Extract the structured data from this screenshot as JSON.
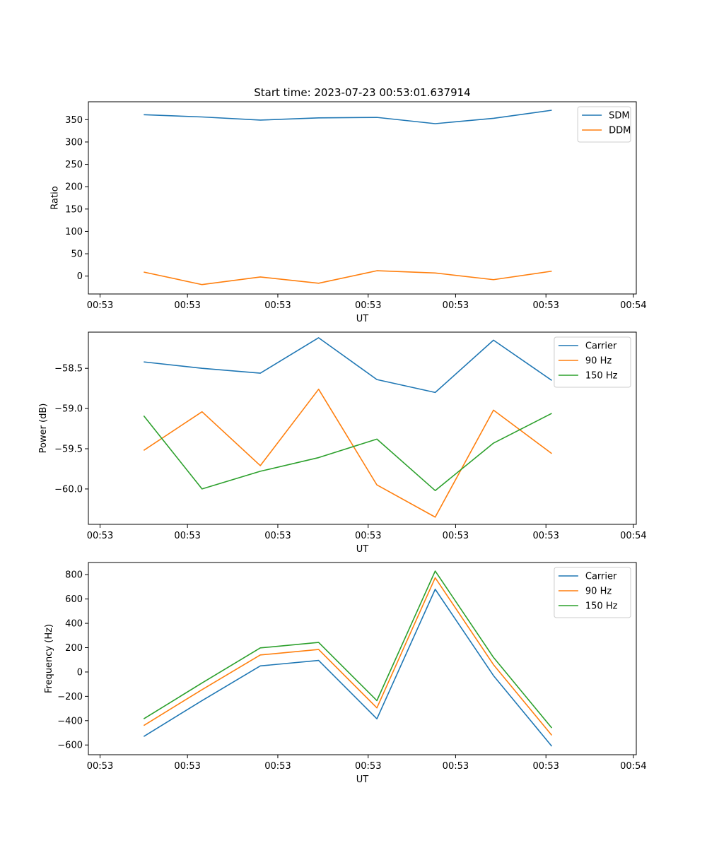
{
  "chart_data": [
    {
      "type": "line",
      "title": "Start time: 2023-07-23 00:53:01.637914",
      "xlabel": "UT",
      "ylabel": "Ratio",
      "xlim": [
        -0.2,
        9.2
      ],
      "ylim": [
        -40,
        390
      ],
      "x_ticks": [
        0,
        1.5,
        3.05,
        4.6,
        6.1,
        7.65,
        9.15
      ],
      "x_tick_labels": [
        "00:53",
        "00:53",
        "00:53",
        "00:53",
        "00:53",
        "00:53",
        "00:54"
      ],
      "y_ticks": [
        0,
        50,
        100,
        150,
        200,
        250,
        300,
        350
      ],
      "y_tick_labels": [
        "0",
        "50",
        "100",
        "150",
        "200",
        "250",
        "300",
        "350"
      ],
      "x": [
        0.75,
        1.75,
        2.75,
        3.75,
        4.75,
        5.75,
        6.75,
        7.75
      ],
      "series": [
        {
          "name": "SDM",
          "color": "#1f77b4",
          "values": [
            361,
            356,
            349,
            354,
            355,
            341,
            353,
            371
          ]
        },
        {
          "name": "DDM",
          "color": "#ff7f0e",
          "values": [
            9,
            -19,
            -2,
            -16,
            12,
            7,
            -8,
            11
          ]
        }
      ],
      "legend": "top-right"
    },
    {
      "type": "line",
      "title": "",
      "xlabel": "UT",
      "ylabel": "Power (dB)",
      "xlim": [
        -0.2,
        9.2
      ],
      "ylim": [
        -60.44,
        -58.05
      ],
      "x_ticks": [
        0,
        1.5,
        3.05,
        4.6,
        6.1,
        7.65,
        9.15
      ],
      "x_tick_labels": [
        "00:53",
        "00:53",
        "00:53",
        "00:53",
        "00:53",
        "00:53",
        "00:54"
      ],
      "y_ticks": [
        -60.0,
        -59.5,
        -59.0,
        -58.5
      ],
      "y_tick_labels": [
        "−60.0",
        "−59.5",
        "−59.0",
        "−58.5"
      ],
      "x": [
        0.75,
        1.75,
        2.75,
        3.75,
        4.75,
        5.75,
        6.75,
        7.75
      ],
      "series": [
        {
          "name": "Carrier",
          "color": "#1f77b4",
          "values": [
            -58.42,
            -58.5,
            -58.56,
            -58.12,
            -58.64,
            -58.8,
            -58.15,
            -58.65
          ]
        },
        {
          "name": "90 Hz",
          "color": "#ff7f0e",
          "values": [
            -59.52,
            -59.04,
            -59.71,
            -58.76,
            -59.95,
            -60.35,
            -59.02,
            -59.56
          ]
        },
        {
          "name": "150 Hz",
          "color": "#2ca02c",
          "values": [
            -59.09,
            -60.0,
            -59.78,
            -59.61,
            -59.38,
            -60.02,
            -59.43,
            -59.06
          ]
        }
      ],
      "legend": "top-right"
    },
    {
      "type": "line",
      "title": "",
      "xlabel": "UT",
      "ylabel": "Frequency (Hz)",
      "xlim": [
        -0.2,
        9.2
      ],
      "ylim": [
        -680,
        900
      ],
      "x_ticks": [
        0,
        1.5,
        3.05,
        4.6,
        6.1,
        7.65,
        9.15
      ],
      "x_tick_labels": [
        "00:53",
        "00:53",
        "00:53",
        "00:53",
        "00:53",
        "00:53",
        "00:54"
      ],
      "y_ticks": [
        -600,
        -400,
        -200,
        0,
        200,
        400,
        600,
        800
      ],
      "y_tick_labels": [
        "−600",
        "−400",
        "−200",
        "0",
        "200",
        "400",
        "600",
        "800"
      ],
      "x": [
        0.75,
        1.75,
        2.75,
        3.75,
        4.75,
        5.75,
        6.75,
        7.75
      ],
      "series": [
        {
          "name": "Carrier",
          "color": "#1f77b4",
          "values": [
            -530,
            -235,
            50,
            95,
            -385,
            680,
            -30,
            -610
          ]
        },
        {
          "name": "90 Hz",
          "color": "#ff7f0e",
          "values": [
            -440,
            -145,
            140,
            185,
            -295,
            775,
            60,
            -520
          ]
        },
        {
          "name": "150 Hz",
          "color": "#2ca02c",
          "values": [
            -385,
            -90,
            198,
            243,
            -235,
            830,
            120,
            -460
          ]
        }
      ],
      "legend": "top-right"
    }
  ]
}
